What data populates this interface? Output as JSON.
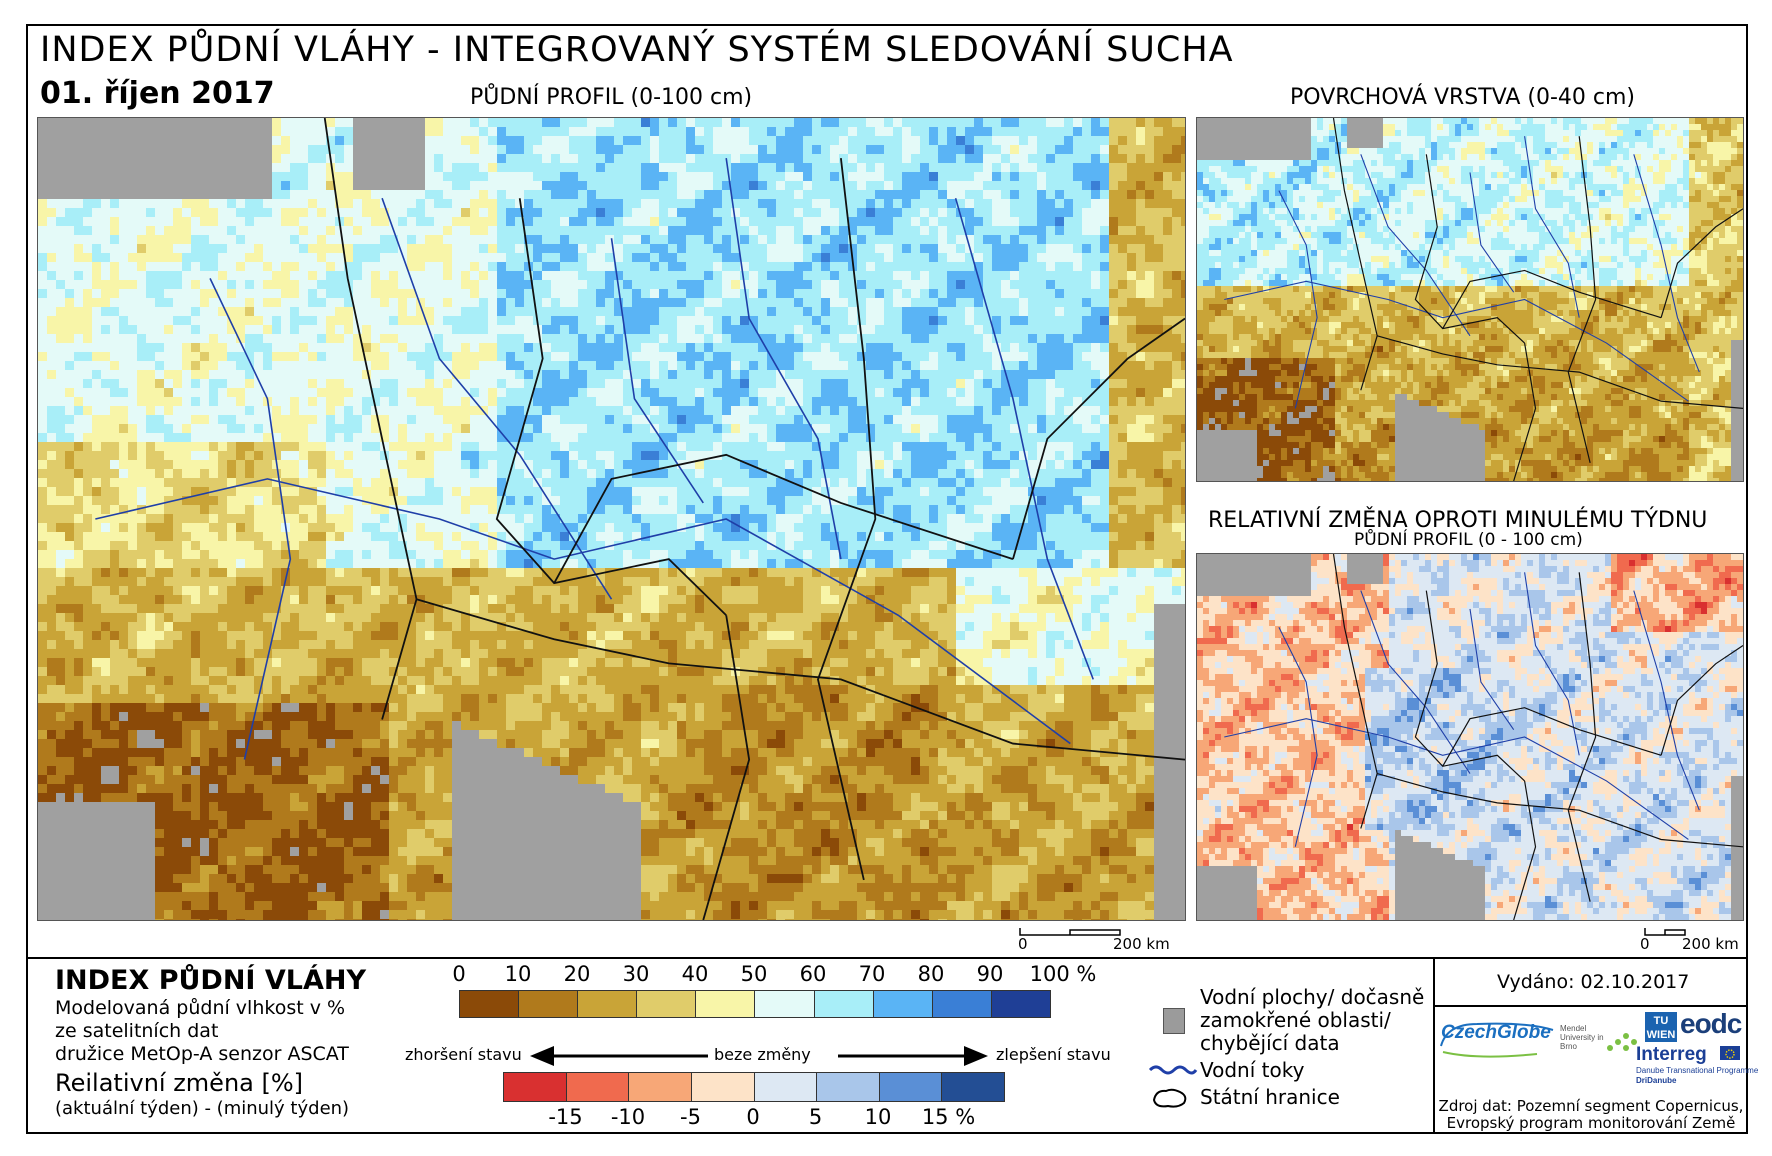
{
  "header": {
    "title": "INDEX PŮDNÍ VLÁHY - INTEGROVANÝ SYSTÉM SLEDOVÁNÍ SUCHA",
    "date": "01. říjen 2017"
  },
  "maps": {
    "main_title": "PŮDNÍ PROFIL (0-100 cm)",
    "surface_title": "POVRCHOVÁ VRSTVA (0-40 cm)",
    "change_title": "RELATIVNÍ ZMĚNA OPROTI MINULÉMU TÝDNU",
    "change_subtitle": "PŮDNÍ PROFIL (0 - 100 cm)",
    "scale_zero": "0",
    "scale_label": "200 km"
  },
  "legend": {
    "title": "INDEX PŮDNÍ VLÁHY",
    "desc_1": "Modelovaná půdní vlhkost v %",
    "desc_2": "ze satelitních dat",
    "desc_3": "družice MetOp-A senzor ASCAT",
    "change_title": "Reilativní změna [%]",
    "change_desc": "(aktuální týden) - (minulý týden)",
    "index_ticks": [
      "0",
      "10",
      "20",
      "30",
      "40",
      "50",
      "60",
      "70",
      "80",
      "90",
      "100 %"
    ],
    "index_colors": [
      "#8b4a08",
      "#b07a1c",
      "#c9a437",
      "#e0cc6a",
      "#f8f5a8",
      "#e4faf8",
      "#a8eef8",
      "#5ab4f5",
      "#3a7fd6",
      "#1f3f96"
    ],
    "change_ticks": [
      "-15",
      "-10",
      "-5",
      "0",
      "5",
      "10",
      "15 %"
    ],
    "change_colors": [
      "#d93030",
      "#f06a4e",
      "#f7a777",
      "#fde3c8",
      "#dde8f3",
      "#a9c6ea",
      "#5a8fd6",
      "#234e94"
    ],
    "worse": "zhoršení stavu",
    "nochange": "beze změny",
    "better": "zlepšení stavu"
  },
  "key": {
    "water": "Vodní plochy/ dočasně",
    "water_2": "zamokřené oblasti/",
    "water_3": "chybějící data",
    "rivers": "Vodní toky",
    "borders": "Státní hranice",
    "water_color": "#9b9b9b",
    "river_color": "#1f3fa8"
  },
  "info": {
    "issued": "Vydáno: 02.10.2017",
    "source_1": "Zdroj dat: Pozemní segment Copernicus,",
    "source_2": "Evropský program monitorování Země",
    "logo_czechglobe": "CzechGlobe",
    "logo_mendel": "Mendel University in Brno",
    "logo_tu": "TU WIEN",
    "logo_eodc": "eodc",
    "logo_interreg": "Interreg",
    "logo_interreg_sub": "Danube Transnational Programme",
    "logo_dridanube": "DriDanube"
  }
}
